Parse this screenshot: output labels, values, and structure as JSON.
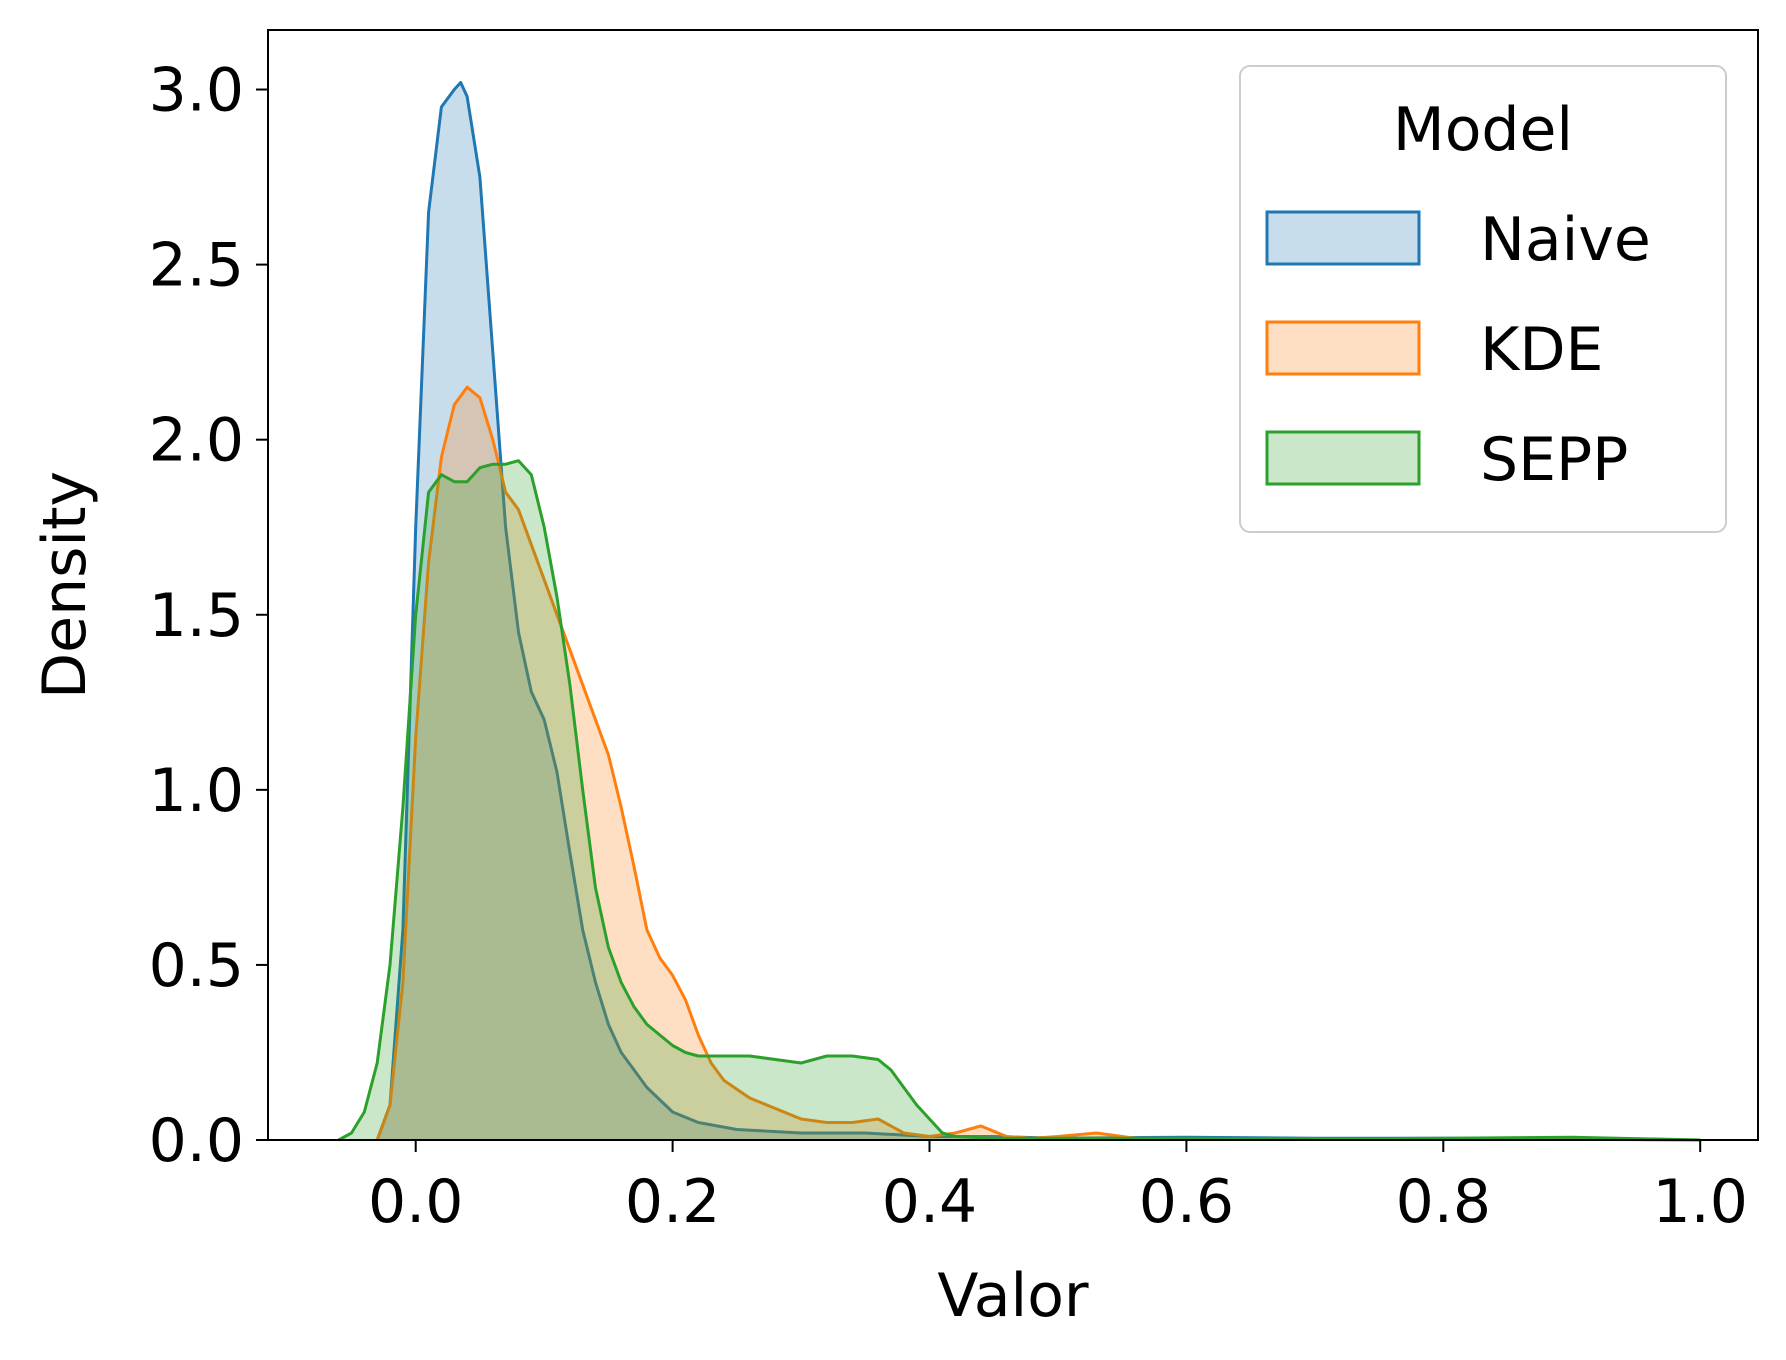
{
  "chart_data": {
    "type": "area",
    "title": "",
    "xlabel": "Valor",
    "ylabel": "Density",
    "xlim": [
      -0.115,
      1.045
    ],
    "ylim": [
      0,
      3.17
    ],
    "xticks": [
      0.0,
      0.2,
      0.4,
      0.6,
      0.8,
      1.0
    ],
    "xtick_labels": [
      "0.0",
      "0.2",
      "0.4",
      "0.6",
      "0.8",
      "1.0"
    ],
    "yticks": [
      0.0,
      0.5,
      1.0,
      1.5,
      2.0,
      2.5,
      3.0
    ],
    "ytick_labels": [
      "0.0",
      "0.5",
      "1.0",
      "1.5",
      "2.0",
      "2.5",
      "3.0"
    ],
    "grid": false,
    "legend": {
      "title": "Model",
      "placement": "top-right"
    },
    "series": [
      {
        "name": "Naive",
        "color": "#1f77b4",
        "fill_opacity": 0.25,
        "x": [
          -0.03,
          -0.02,
          -0.01,
          0.0,
          0.01,
          0.02,
          0.03,
          0.035,
          0.04,
          0.05,
          0.06,
          0.07,
          0.08,
          0.09,
          0.1,
          0.11,
          0.12,
          0.13,
          0.14,
          0.15,
          0.16,
          0.17,
          0.18,
          0.2,
          0.22,
          0.25,
          0.3,
          0.35,
          0.4,
          0.45,
          0.5,
          0.6,
          0.7,
          0.8,
          0.9,
          1.0
        ],
        "y": [
          0.0,
          0.1,
          0.6,
          1.75,
          2.65,
          2.95,
          3.0,
          3.02,
          2.98,
          2.75,
          2.25,
          1.75,
          1.45,
          1.28,
          1.2,
          1.05,
          0.82,
          0.6,
          0.45,
          0.33,
          0.25,
          0.2,
          0.15,
          0.08,
          0.05,
          0.03,
          0.02,
          0.02,
          0.01,
          0.01,
          0.005,
          0.008,
          0.005,
          0.005,
          0.003,
          0.0
        ]
      },
      {
        "name": "KDE",
        "color": "#ff7f0e",
        "fill_opacity": 0.25,
        "x": [
          -0.03,
          -0.02,
          -0.01,
          0.0,
          0.01,
          0.02,
          0.03,
          0.04,
          0.05,
          0.06,
          0.07,
          0.08,
          0.09,
          0.1,
          0.11,
          0.12,
          0.13,
          0.14,
          0.15,
          0.16,
          0.17,
          0.18,
          0.19,
          0.2,
          0.21,
          0.22,
          0.23,
          0.24,
          0.26,
          0.28,
          0.3,
          0.32,
          0.34,
          0.36,
          0.38,
          0.4,
          0.42,
          0.44,
          0.46,
          0.48,
          0.5,
          0.53,
          0.56,
          0.6,
          0.7,
          0.8,
          0.9,
          1.0
        ],
        "y": [
          0.0,
          0.1,
          0.45,
          1.15,
          1.65,
          1.95,
          2.1,
          2.15,
          2.12,
          2.0,
          1.85,
          1.8,
          1.7,
          1.6,
          1.5,
          1.4,
          1.3,
          1.2,
          1.1,
          0.95,
          0.78,
          0.6,
          0.52,
          0.47,
          0.4,
          0.3,
          0.22,
          0.17,
          0.12,
          0.09,
          0.06,
          0.05,
          0.05,
          0.06,
          0.02,
          0.01,
          0.02,
          0.04,
          0.01,
          0.005,
          0.01,
          0.02,
          0.005,
          0.003,
          0.003,
          0.002,
          0.002,
          0.0
        ]
      },
      {
        "name": "SEPP",
        "color": "#2ca02c",
        "fill_opacity": 0.25,
        "x": [
          -0.06,
          -0.05,
          -0.04,
          -0.03,
          -0.02,
          -0.01,
          0.0,
          0.01,
          0.02,
          0.03,
          0.04,
          0.05,
          0.06,
          0.07,
          0.08,
          0.09,
          0.1,
          0.11,
          0.12,
          0.13,
          0.14,
          0.15,
          0.16,
          0.17,
          0.18,
          0.19,
          0.2,
          0.21,
          0.22,
          0.24,
          0.26,
          0.28,
          0.3,
          0.32,
          0.34,
          0.36,
          0.37,
          0.38,
          0.39,
          0.4,
          0.41,
          0.42,
          0.45,
          0.5,
          0.6,
          0.7,
          0.8,
          0.9,
          1.0
        ],
        "y": [
          0.0,
          0.02,
          0.08,
          0.22,
          0.5,
          0.95,
          1.5,
          1.85,
          1.9,
          1.88,
          1.88,
          1.92,
          1.93,
          1.93,
          1.94,
          1.9,
          1.75,
          1.55,
          1.3,
          1.0,
          0.72,
          0.55,
          0.45,
          0.38,
          0.33,
          0.3,
          0.27,
          0.25,
          0.24,
          0.24,
          0.24,
          0.23,
          0.22,
          0.24,
          0.24,
          0.23,
          0.2,
          0.15,
          0.1,
          0.06,
          0.02,
          0.01,
          0.005,
          0.005,
          0.005,
          0.003,
          0.005,
          0.008,
          0.0
        ]
      }
    ]
  }
}
